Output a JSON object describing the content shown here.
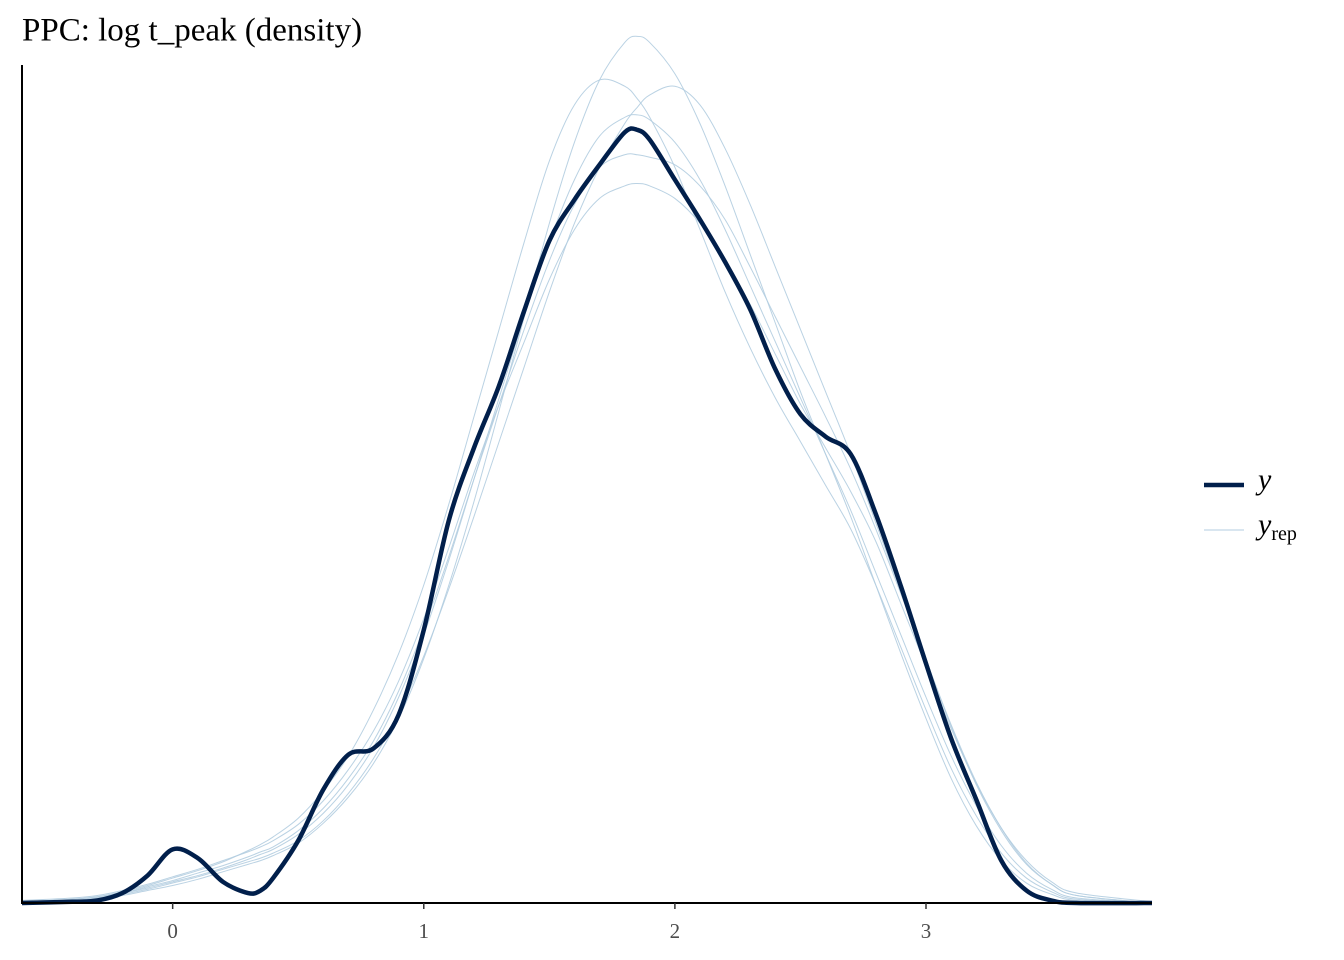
{
  "chart_data": {
    "type": "density",
    "title": "PPC: log t_peak (density)",
    "x": [
      -0.6,
      -0.4,
      -0.3,
      -0.2,
      -0.1,
      0,
      0.1,
      0.2,
      0.3,
      0.35,
      0.4,
      0.5,
      0.6,
      0.7,
      0.8,
      0.9,
      1.0,
      1.1,
      1.2,
      1.3,
      1.4,
      1.5,
      1.6,
      1.7,
      1.8,
      1.85,
      1.9,
      2.0,
      2.1,
      2.2,
      2.3,
      2.4,
      2.5,
      2.6,
      2.7,
      2.8,
      2.9,
      3.0,
      3.1,
      3.2,
      3.3,
      3.4,
      3.5,
      3.6,
      3.9
    ],
    "series": [
      {
        "name": "y",
        "color": "#011f4b",
        "values": [
          0,
          0.001,
          0.002,
          0.008,
          0.022,
          0.043,
          0.036,
          0.017,
          0.008,
          0.01,
          0.02,
          0.05,
          0.091,
          0.119,
          0.124,
          0.151,
          0.219,
          0.307,
          0.365,
          0.415,
          0.475,
          0.531,
          0.564,
          0.592,
          0.618,
          0.62,
          0.612,
          0.58,
          0.548,
          0.514,
          0.476,
          0.428,
          0.392,
          0.374,
          0.36,
          0.312,
          0.254,
          0.192,
          0.132,
          0.083,
          0.034,
          0.01,
          0.002,
          0,
          0
        ]
      },
      {
        "name": "y",
        "subscript": "rep",
        "color": "#b3cde0",
        "draws": [
          [
            0.001,
            0.003,
            0.005,
            0.008,
            0.012,
            0.017,
            0.022,
            0.028,
            0.035,
            0.039,
            0.043,
            0.055,
            0.072,
            0.095,
            0.125,
            0.165,
            0.215,
            0.275,
            0.34,
            0.405,
            0.47,
            0.53,
            0.58,
            0.615,
            0.63,
            0.632,
            0.628,
            0.61,
            0.58,
            0.54,
            0.495,
            0.45,
            0.405,
            0.36,
            0.315,
            0.265,
            0.215,
            0.165,
            0.118,
            0.078,
            0.046,
            0.024,
            0.011,
            0.004,
            0
          ],
          [
            0,
            0.002,
            0.003,
            0.006,
            0.01,
            0.014,
            0.019,
            0.025,
            0.031,
            0.034,
            0.038,
            0.048,
            0.064,
            0.085,
            0.112,
            0.148,
            0.196,
            0.255,
            0.322,
            0.395,
            0.47,
            0.545,
            0.61,
            0.66,
            0.69,
            0.695,
            0.69,
            0.665,
            0.625,
            0.575,
            0.52,
            0.465,
            0.41,
            0.36,
            0.31,
            0.255,
            0.2,
            0.148,
            0.1,
            0.062,
            0.034,
            0.016,
            0.007,
            0.002,
            0
          ],
          [
            0.002,
            0.004,
            0.006,
            0.01,
            0.015,
            0.021,
            0.027,
            0.034,
            0.041,
            0.045,
            0.05,
            0.063,
            0.082,
            0.107,
            0.138,
            0.178,
            0.228,
            0.285,
            0.345,
            0.4,
            0.45,
            0.5,
            0.54,
            0.565,
            0.575,
            0.577,
            0.575,
            0.565,
            0.545,
            0.515,
            0.48,
            0.44,
            0.4,
            0.365,
            0.33,
            0.29,
            0.24,
            0.19,
            0.14,
            0.096,
            0.06,
            0.034,
            0.017,
            0.008,
            0.001
          ],
          [
            0.001,
            0.002,
            0.004,
            0.007,
            0.011,
            0.016,
            0.021,
            0.027,
            0.033,
            0.036,
            0.04,
            0.05,
            0.066,
            0.088,
            0.116,
            0.152,
            0.198,
            0.252,
            0.31,
            0.37,
            0.43,
            0.49,
            0.545,
            0.59,
            0.625,
            0.638,
            0.648,
            0.655,
            0.64,
            0.605,
            0.56,
            0.51,
            0.46,
            0.41,
            0.36,
            0.305,
            0.25,
            0.195,
            0.142,
            0.095,
            0.058,
            0.031,
            0.015,
            0.006,
            0
          ],
          [
            0.001,
            0.003,
            0.005,
            0.009,
            0.014,
            0.02,
            0.026,
            0.033,
            0.042,
            0.047,
            0.053,
            0.068,
            0.09,
            0.118,
            0.155,
            0.2,
            0.255,
            0.32,
            0.39,
            0.46,
            0.53,
            0.595,
            0.64,
            0.66,
            0.655,
            0.645,
            0.63,
            0.59,
            0.54,
            0.49,
            0.445,
            0.405,
            0.37,
            0.335,
            0.3,
            0.255,
            0.205,
            0.155,
            0.108,
            0.07,
            0.04,
            0.02,
            0.009,
            0.003,
            0
          ],
          [
            0.001,
            0.002,
            0.004,
            0.008,
            0.013,
            0.018,
            0.024,
            0.03,
            0.037,
            0.041,
            0.045,
            0.058,
            0.076,
            0.1,
            0.13,
            0.17,
            0.22,
            0.278,
            0.34,
            0.4,
            0.46,
            0.515,
            0.56,
            0.59,
            0.6,
            0.6,
            0.598,
            0.592,
            0.575,
            0.548,
            0.51,
            0.47,
            0.43,
            0.39,
            0.348,
            0.3,
            0.248,
            0.195,
            0.143,
            0.097,
            0.06,
            0.032,
            0.015,
            0.006,
            0
          ]
        ]
      }
    ],
    "xlim": [
      -0.6,
      3.9
    ],
    "xticks": [
      0,
      1,
      2,
      3
    ],
    "ylim": [
      0,
      0.672
    ],
    "grid": false,
    "legend": "right"
  }
}
